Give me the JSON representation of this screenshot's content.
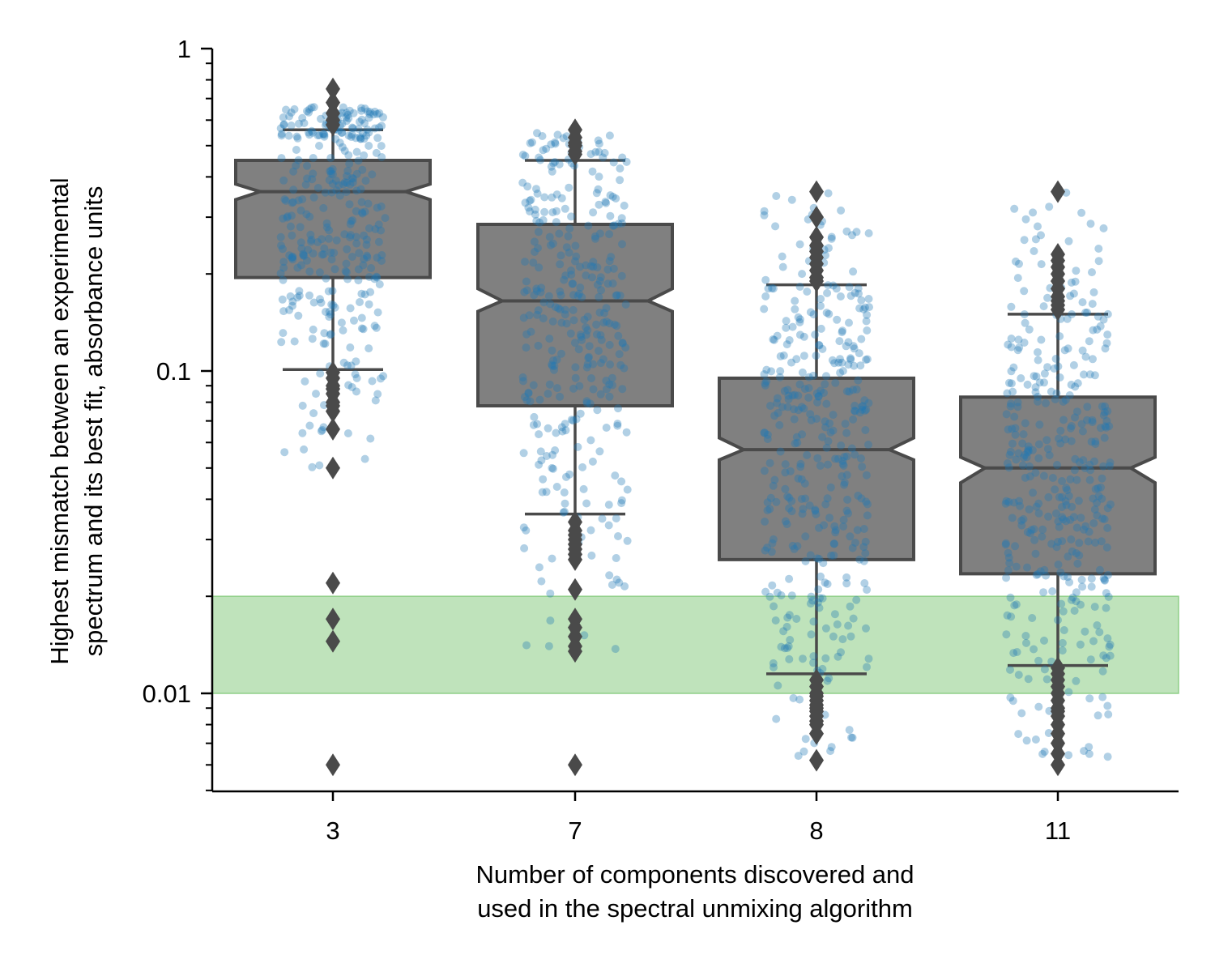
{
  "chart_data": {
    "type": "box",
    "ylabel": [
      "Highest mismatch between an experimental",
      "spectrum and its best fit, absorbance units"
    ],
    "xlabel": [
      "Number of components discovered and",
      "used in the spectral unmixing algorithm"
    ],
    "yscale": "log",
    "ylim": [
      0.005,
      1
    ],
    "y_ticks": [
      {
        "value": 0.01,
        "label": "0.01"
      },
      {
        "value": 0.1,
        "label": "0.1"
      },
      {
        "value": 1,
        "label": "1"
      }
    ],
    "categories": [
      "3",
      "7",
      "8",
      "11"
    ],
    "notched": true,
    "box_color": "#808080",
    "edge_color": "#4a4a4a",
    "point_color": "#1f77b4",
    "highlight_band": {
      "y_min": 0.01,
      "y_max": 0.02,
      "color": "#a9d9a4"
    },
    "boxes": [
      {
        "category": "3",
        "q1": 0.195,
        "median": 0.36,
        "q3": 0.45,
        "notch_low": 0.34,
        "notch_high": 0.38,
        "whisker_low": 0.101,
        "whisker_high": 0.56,
        "outliers": [
          0.75,
          0.68,
          0.63,
          0.6,
          0.58,
          0.099,
          0.095,
          0.09,
          0.088,
          0.085,
          0.08,
          0.078,
          0.075,
          0.066,
          0.05,
          0.022,
          0.017,
          0.0145,
          0.006
        ],
        "points": {
          "n": 340,
          "min": 0.05,
          "max": 0.66,
          "center": 0.3,
          "spread": 0.32
        }
      },
      {
        "category": "7",
        "q1": 0.078,
        "median": 0.165,
        "q3": 0.285,
        "notch_low": 0.153,
        "notch_high": 0.18,
        "whisker_low": 0.036,
        "whisker_high": 0.45,
        "outliers": [
          0.56,
          0.53,
          0.51,
          0.5,
          0.48,
          0.47,
          0.034,
          0.032,
          0.031,
          0.03,
          0.029,
          0.028,
          0.027,
          0.026,
          0.021,
          0.017,
          0.016,
          0.015,
          0.014,
          0.0135,
          0.006
        ],
        "points": {
          "n": 340,
          "min": 0.013,
          "max": 0.55,
          "center": 0.14,
          "spread": 0.38
        }
      },
      {
        "category": "8",
        "q1": 0.026,
        "median": 0.057,
        "q3": 0.095,
        "notch_low": 0.053,
        "notch_high": 0.062,
        "whisker_low": 0.0115,
        "whisker_high": 0.185,
        "outliers": [
          0.36,
          0.3,
          0.26,
          0.245,
          0.235,
          0.225,
          0.215,
          0.205,
          0.195,
          0.19,
          0.011,
          0.0105,
          0.01,
          0.0098,
          0.0095,
          0.0092,
          0.009,
          0.0088,
          0.0085,
          0.0082,
          0.008,
          0.0075,
          0.0062
        ],
        "points": {
          "n": 380,
          "min": 0.0062,
          "max": 0.36,
          "center": 0.05,
          "spread": 0.42
        }
      },
      {
        "category": "11",
        "q1": 0.0235,
        "median": 0.05,
        "q3": 0.083,
        "notch_low": 0.045,
        "notch_high": 0.054,
        "whisker_low": 0.0122,
        "whisker_high": 0.15,
        "outliers": [
          0.36,
          0.23,
          0.22,
          0.21,
          0.2,
          0.19,
          0.18,
          0.17,
          0.165,
          0.16,
          0.155,
          0.012,
          0.0115,
          0.011,
          0.0105,
          0.01,
          0.0095,
          0.009,
          0.0088,
          0.0085,
          0.008,
          0.0075,
          0.007,
          0.0065,
          0.006
        ],
        "points": {
          "n": 380,
          "min": 0.0062,
          "max": 0.36,
          "center": 0.045,
          "spread": 0.42
        }
      }
    ]
  }
}
